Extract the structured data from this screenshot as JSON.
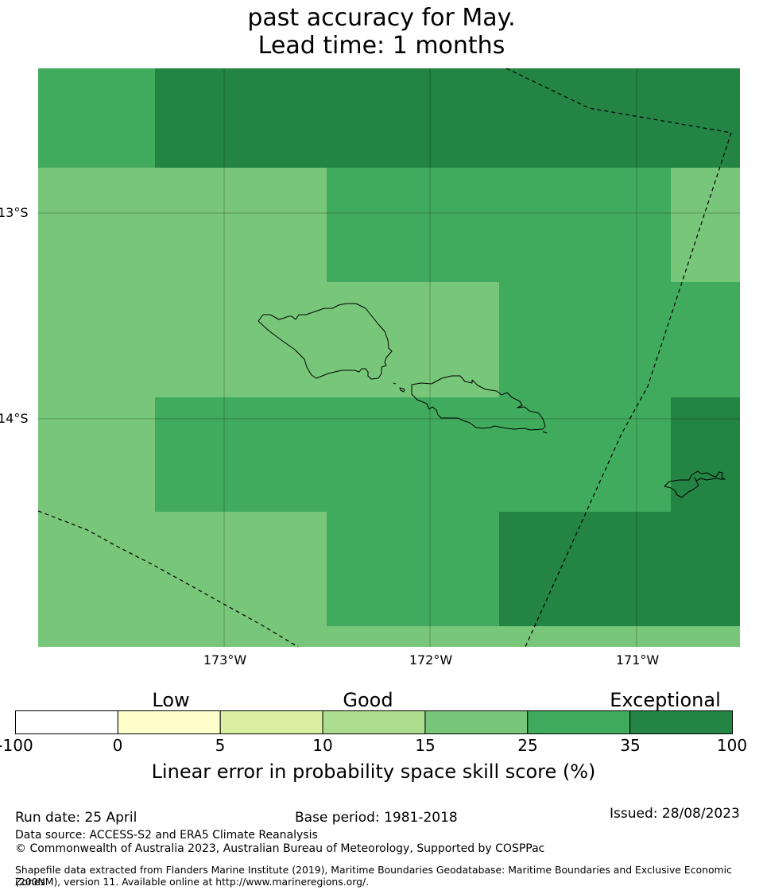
{
  "title": {
    "line1": "past accuracy for May.",
    "line2": "Lead time: 1 months"
  },
  "map": {
    "lat_labels": [
      "13°S",
      "14°S"
    ],
    "lon_labels": [
      "173°W",
      "172°W",
      "171°W"
    ],
    "skill_colors": {
      "15-25": "#78c679",
      "25-35": "#41ab5d",
      "35-100": "#238443"
    },
    "features": [
      "eez-boundary-dashed",
      "coastline-savaii",
      "coastline-upolu",
      "coastline-tutuila"
    ]
  },
  "colorbar": {
    "category_labels": [
      "Low",
      "Good",
      "Exceptional"
    ],
    "tick_labels": [
      "-100",
      "0",
      "5",
      "10",
      "15",
      "25",
      "35",
      "100"
    ],
    "colors": [
      "#ffffff",
      "#ffffcc",
      "#d9f0a3",
      "#addd8e",
      "#78c679",
      "#41ab5d",
      "#238443"
    ],
    "title": "Linear error in probability space skill score (%)"
  },
  "footer": {
    "run_date": "Run date: 25 April",
    "base_period": "Base period: 1981-2018",
    "issued": "Issued: 28/08/2023",
    "data_source": "Data source: ACCESS-S2 and ERA5 Climate Reanalysis",
    "copyright": "© Commonwealth of Australia 2023, Australian Bureau of Meteorology, Supported by COSPPac",
    "shapefile_line1": "Shapefile data extracted from Flanders Marine Institute (2019), Maritime Boundaries Geodatabase: Maritime Boundaries and Exclusive Economic Zones",
    "shapefile_line2": "(200NM), version 11. Available online at http://www.marineregions.org/."
  }
}
